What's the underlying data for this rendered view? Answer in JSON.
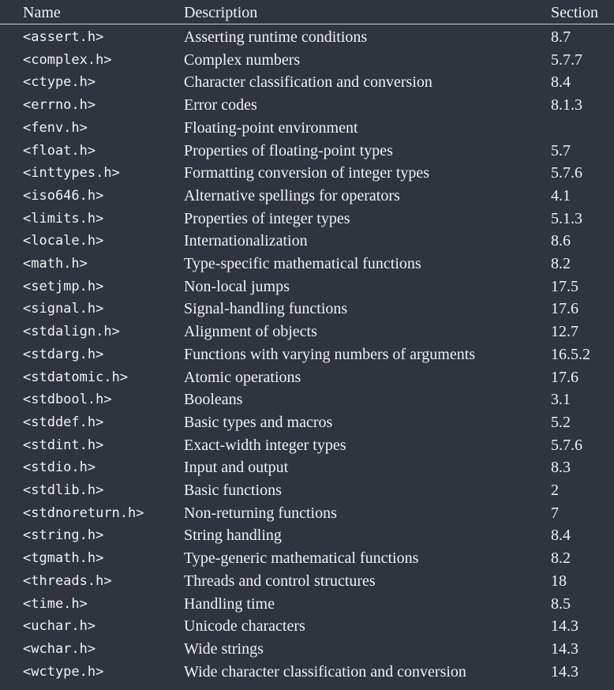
{
  "table": {
    "columns": {
      "name": "Name",
      "description": "Description",
      "section": "Section"
    },
    "rows": [
      {
        "name": "<assert.h>",
        "description": "Asserting runtime conditions",
        "section": "8.7"
      },
      {
        "name": "<complex.h>",
        "description": "Complex numbers",
        "section": "5.7.7"
      },
      {
        "name": "<ctype.h>",
        "description": "Character classification and conversion",
        "section": "8.4"
      },
      {
        "name": "<errno.h>",
        "description": "Error codes",
        "section": "8.1.3"
      },
      {
        "name": "<fenv.h>",
        "description": "Floating-point environment",
        "section": ""
      },
      {
        "name": "<float.h>",
        "description": "Properties of floating-point types",
        "section": "5.7"
      },
      {
        "name": "<inttypes.h>",
        "description": "Formatting conversion of integer types",
        "section": "5.7.6"
      },
      {
        "name": "<iso646.h>",
        "description": "Alternative spellings for operators",
        "section": "4.1"
      },
      {
        "name": "<limits.h>",
        "description": "Properties of integer types",
        "section": "5.1.3"
      },
      {
        "name": "<locale.h>",
        "description": "Internationalization",
        "section": "8.6"
      },
      {
        "name": "<math.h>",
        "description": "Type-specific mathematical functions",
        "section": "8.2"
      },
      {
        "name": "<setjmp.h>",
        "description": "Non-local jumps",
        "section": "17.5"
      },
      {
        "name": "<signal.h>",
        "description": "Signal-handling functions",
        "section": "17.6"
      },
      {
        "name": "<stdalign.h>",
        "description": "Alignment of objects",
        "section": "12.7"
      },
      {
        "name": "<stdarg.h>",
        "description": "Functions with varying numbers of arguments",
        "section": "16.5.2"
      },
      {
        "name": "<stdatomic.h>",
        "description": "Atomic operations",
        "section": "17.6"
      },
      {
        "name": "<stdbool.h>",
        "description": "Booleans",
        "section": "3.1"
      },
      {
        "name": "<stddef.h>",
        "description": "Basic types and macros",
        "section": "5.2"
      },
      {
        "name": "<stdint.h>",
        "description": "Exact-width integer types",
        "section": "5.7.6"
      },
      {
        "name": "<stdio.h>",
        "description": "Input and output",
        "section": "8.3"
      },
      {
        "name": "<stdlib.h>",
        "description": "Basic functions",
        "section": "2"
      },
      {
        "name": "<stdnoreturn.h>",
        "description": "Non-returning functions",
        "section": "7"
      },
      {
        "name": "<string.h>",
        "description": "String handling",
        "section": "8.4"
      },
      {
        "name": "<tgmath.h>",
        "description": "Type-generic mathematical functions",
        "section": "8.2"
      },
      {
        "name": "<threads.h>",
        "description": "Threads and control structures",
        "section": "18"
      },
      {
        "name": "<time.h>",
        "description": "Handling time",
        "section": "8.5"
      },
      {
        "name": "<uchar.h>",
        "description": "Unicode characters",
        "section": "14.3"
      },
      {
        "name": "<wchar.h>",
        "description": "Wide strings",
        "section": "14.3"
      },
      {
        "name": "<wctype.h>",
        "description": "Wide character classification and conversion",
        "section": "14.3"
      }
    ]
  }
}
